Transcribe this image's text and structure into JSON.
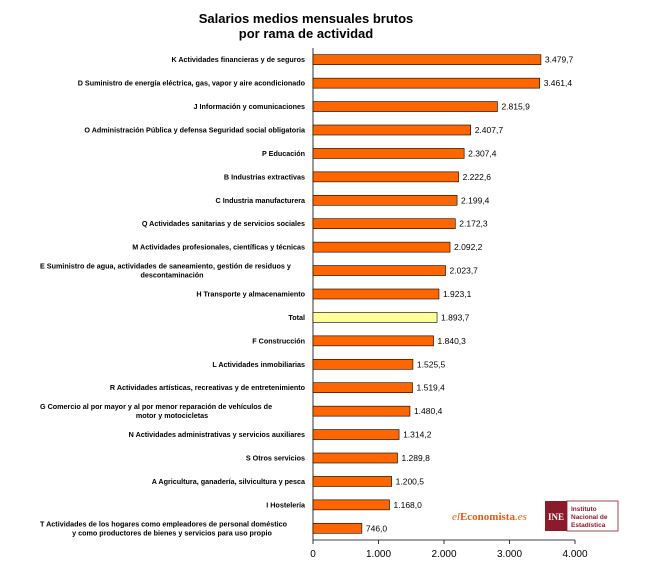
{
  "chart_data": {
    "type": "bar",
    "orientation": "horizontal",
    "title_line1": "Salarios medios mensuales brutos",
    "title_line2": "por rama de actividad",
    "xlim": [
      0,
      4000
    ],
    "ticks": [
      0,
      1000,
      2000,
      3000,
      4000
    ],
    "tick_labels": [
      "0",
      "1.000",
      "2.000",
      "3.000",
      "4.000"
    ],
    "bar_color": "#ff6600",
    "highlight_color": "#ffff99",
    "highlight_category": "Total",
    "categories": [
      [
        "K  Actividades financieras y de seguros"
      ],
      [
        "D  Suministro de energía eléctrica, gas, vapor y aire acondicionado"
      ],
      [
        "J  Información y comunicaciones"
      ],
      [
        "O  Administración Pública y defensa Seguridad social obligatoria"
      ],
      [
        "P  Educación"
      ],
      [
        "B  Industrias extractivas"
      ],
      [
        "C  Industria manufacturera"
      ],
      [
        "Q  Actividades sanitarias y de servicios sociales"
      ],
      [
        "M  Actividades profesionales, científicas y técnicas"
      ],
      [
        "E  Suministro de agua, actividades de saneamiento, gestión de residuos y",
        "descontaminación"
      ],
      [
        "H  Transporte y almacenamiento"
      ],
      [
        "Total"
      ],
      [
        "F  Construcción"
      ],
      [
        "L  Actividades inmobiliarias"
      ],
      [
        "R  Actividades artísticas, recreativas y de entretenimiento"
      ],
      [
        "G  Comercio al por mayor y al por menor reparación de vehículos de",
        "motor y motocicletas"
      ],
      [
        "N  Actividades administrativas y servicios auxiliares"
      ],
      [
        "S  Otros servicios"
      ],
      [
        "A  Agricultura, ganadería, silvicultura y pesca"
      ],
      [
        "I  Hostelería"
      ],
      [
        "T  Actividades de los hogares como empleadores de personal doméstico",
        "y como productores de bienes y servicios para uso propio"
      ]
    ],
    "values": [
      3479.7,
      3461.4,
      2815.9,
      2407.7,
      2307.4,
      2222.6,
      2199.4,
      2172.3,
      2092.2,
      2023.7,
      1923.1,
      1893.7,
      1840.3,
      1525.5,
      1519.4,
      1480.4,
      1314.2,
      1289.8,
      1200.5,
      1168.0,
      746.0
    ],
    "value_labels": [
      "3.479,7",
      "3.461,4",
      "2.815,9",
      "2.407,7",
      "2.307,4",
      "2.222,6",
      "2.199,4",
      "2.172,3",
      "2.092,2",
      "2.023,7",
      "1.923,1",
      "1.893,7",
      "1.840,3",
      "1.525,5",
      "1.519,4",
      "1.480,4",
      "1.314,2",
      "1.289,8",
      "1.200,5",
      "1.168,0",
      "746,0"
    ]
  },
  "logos": {
    "eleconomista_prefix": "el",
    "eleconomista_name": "Economista",
    "eleconomista_suffix": ".es",
    "ine_mark": "INE",
    "ine_line1": "Instituto",
    "ine_line2": "Nacional de",
    "ine_line3": "Estadística",
    "ine_color": "#8b1a2b"
  }
}
